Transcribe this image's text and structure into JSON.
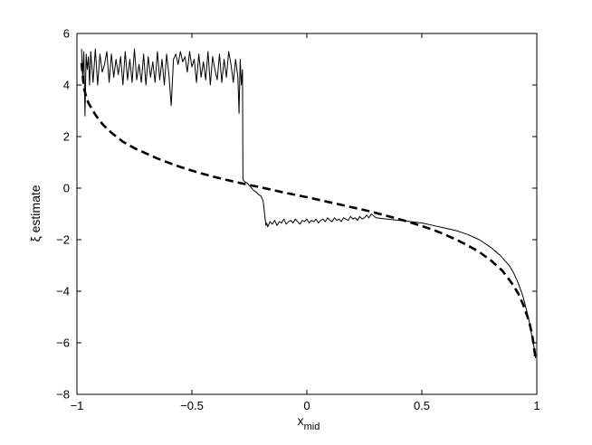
{
  "chart_data": {
    "type": "line",
    "title": "",
    "xlabel": "x",
    "xlabel_subscript": "mid",
    "ylabel": "ξ estimate",
    "xlim": [
      -1,
      1
    ],
    "ylim": [
      -8,
      6
    ],
    "xticks": [
      -1,
      -0.5,
      0,
      0.5,
      1
    ],
    "xtick_labels": [
      "−1",
      "−0.5",
      "0",
      "0.5",
      "1"
    ],
    "yticks": [
      -8,
      -6,
      -4,
      -2,
      0,
      2,
      4,
      6
    ],
    "ytick_labels": [
      "−8",
      "−6",
      "−4",
      "−2",
      "0",
      "2",
      "4",
      "6"
    ],
    "grid": false,
    "legend": "none",
    "series": [
      {
        "style": "solid",
        "color": "#000000",
        "x": [
          -0.98,
          -0.975,
          -0.97,
          -0.965,
          -0.96,
          -0.955,
          -0.95,
          -0.945,
          -0.94,
          -0.93,
          -0.92,
          -0.91,
          -0.9,
          -0.89,
          -0.88,
          -0.87,
          -0.86,
          -0.85,
          -0.84,
          -0.83,
          -0.82,
          -0.81,
          -0.8,
          -0.79,
          -0.78,
          -0.77,
          -0.76,
          -0.75,
          -0.74,
          -0.73,
          -0.72,
          -0.71,
          -0.7,
          -0.69,
          -0.68,
          -0.67,
          -0.66,
          -0.65,
          -0.64,
          -0.63,
          -0.62,
          -0.61,
          -0.6,
          -0.59,
          -0.58,
          -0.57,
          -0.56,
          -0.55,
          -0.54,
          -0.53,
          -0.52,
          -0.51,
          -0.5,
          -0.49,
          -0.48,
          -0.47,
          -0.46,
          -0.45,
          -0.44,
          -0.43,
          -0.42,
          -0.41,
          -0.4,
          -0.39,
          -0.38,
          -0.37,
          -0.36,
          -0.35,
          -0.34,
          -0.33,
          -0.32,
          -0.31,
          -0.3,
          -0.295,
          -0.29,
          -0.285,
          -0.28,
          -0.278,
          -0.276,
          -0.27,
          -0.26,
          -0.25,
          -0.24,
          -0.23,
          -0.22,
          -0.21,
          -0.2,
          -0.19,
          -0.185,
          -0.18,
          -0.178,
          -0.175,
          -0.17,
          -0.16,
          -0.15,
          -0.14,
          -0.13,
          -0.12,
          -0.11,
          -0.1,
          -0.09,
          -0.08,
          -0.07,
          -0.06,
          -0.05,
          -0.04,
          -0.03,
          -0.02,
          -0.01,
          0.0,
          0.01,
          0.02,
          0.03,
          0.04,
          0.05,
          0.06,
          0.07,
          0.08,
          0.09,
          0.1,
          0.11,
          0.12,
          0.13,
          0.14,
          0.15,
          0.16,
          0.17,
          0.18,
          0.19,
          0.2,
          0.21,
          0.22,
          0.23,
          0.24,
          0.25,
          0.26,
          0.27,
          0.28,
          0.3,
          0.35,
          0.4,
          0.45,
          0.5,
          0.55,
          0.6,
          0.65,
          0.7,
          0.75,
          0.8,
          0.82,
          0.84,
          0.86,
          0.88,
          0.9,
          0.92,
          0.94,
          0.96,
          0.97,
          0.98,
          0.985,
          0.99,
          0.995
        ],
        "y": [
          5.4,
          4.3,
          5.3,
          2.8,
          5.2,
          4.6,
          5.1,
          4.0,
          5.3,
          4.1,
          5.4,
          4.0,
          5.2,
          4.5,
          4.8,
          5.3,
          4.1,
          5.2,
          4.3,
          5.0,
          4.4,
          5.1,
          4.0,
          5.3,
          4.2,
          5.0,
          4.1,
          5.4,
          4.2,
          4.8,
          4.1,
          5.2,
          4.0,
          5.1,
          4.3,
          4.9,
          4.1,
          5.3,
          4.2,
          5.0,
          4.0,
          5.2,
          4.4,
          3.2,
          5.0,
          5.2,
          4.8,
          5.3,
          4.9,
          5.1,
          4.5,
          5.3,
          4.7,
          5.0,
          4.1,
          5.2,
          4.3,
          4.9,
          4.2,
          5.3,
          4.0,
          5.1,
          4.6,
          4.2,
          5.2,
          4.1,
          5.0,
          4.3,
          5.3,
          4.8,
          4.1,
          5.0,
          4.3,
          2.9,
          5.0,
          4.0,
          4.6,
          0.35,
          0.3,
          0.25,
          0.2,
          0.1,
          0.0,
          -0.1,
          -0.15,
          -0.25,
          -0.3,
          -0.5,
          -0.9,
          -1.3,
          -1.45,
          -1.35,
          -1.5,
          -1.3,
          -1.4,
          -1.25,
          -1.45,
          -1.3,
          -1.35,
          -1.2,
          -1.4,
          -1.3,
          -1.25,
          -1.35,
          -1.2,
          -1.3,
          -1.4,
          -1.25,
          -1.3,
          -1.2,
          -1.35,
          -1.25,
          -1.3,
          -1.2,
          -1.35,
          -1.25,
          -1.2,
          -1.3,
          -1.15,
          -1.25,
          -1.3,
          -1.15,
          -1.25,
          -1.2,
          -1.3,
          -1.15,
          -1.2,
          -1.25,
          -1.1,
          -1.2,
          -1.15,
          -1.25,
          -1.1,
          -1.2,
          -1.15,
          -1.05,
          -1.15,
          -1.0,
          -1.15,
          -1.2,
          -1.25,
          -1.3,
          -1.35,
          -1.45,
          -1.55,
          -1.65,
          -1.8,
          -2.0,
          -2.3,
          -2.45,
          -2.6,
          -2.8,
          -3.0,
          -3.3,
          -3.7,
          -4.2,
          -4.9,
          -5.3,
          -5.8,
          -6.0,
          -6.3,
          -6.6
        ]
      },
      {
        "style": "dashed",
        "color": "#000000",
        "x": [
          -0.98,
          -0.975,
          -0.97,
          -0.96,
          -0.95,
          -0.94,
          -0.92,
          -0.9,
          -0.88,
          -0.85,
          -0.8,
          -0.75,
          -0.7,
          -0.65,
          -0.6,
          -0.55,
          -0.5,
          -0.45,
          -0.4,
          -0.35,
          -0.3,
          -0.25,
          -0.2,
          -0.15,
          -0.1,
          -0.05,
          0.0,
          0.05,
          0.1,
          0.15,
          0.2,
          0.25,
          0.3,
          0.35,
          0.4,
          0.45,
          0.5,
          0.55,
          0.6,
          0.65,
          0.7,
          0.75,
          0.8,
          0.85,
          0.88,
          0.9,
          0.92,
          0.94,
          0.95,
          0.96,
          0.97,
          0.98,
          0.985,
          0.99,
          0.995
        ],
        "y": [
          4.85,
          4.4,
          3.9,
          3.55,
          3.3,
          3.15,
          2.85,
          2.6,
          2.4,
          2.15,
          1.8,
          1.55,
          1.35,
          1.15,
          0.98,
          0.82,
          0.68,
          0.55,
          0.43,
          0.32,
          0.22,
          0.12,
          0.03,
          -0.07,
          -0.17,
          -0.26,
          -0.35,
          -0.45,
          -0.55,
          -0.65,
          -0.75,
          -0.85,
          -0.96,
          -1.08,
          -1.2,
          -1.33,
          -1.47,
          -1.62,
          -1.8,
          -2.0,
          -2.22,
          -2.48,
          -2.8,
          -3.2,
          -3.55,
          -3.8,
          -4.1,
          -4.5,
          -4.75,
          -5.0,
          -5.3,
          -5.7,
          -6.0,
          -6.3,
          -6.7
        ]
      }
    ]
  }
}
